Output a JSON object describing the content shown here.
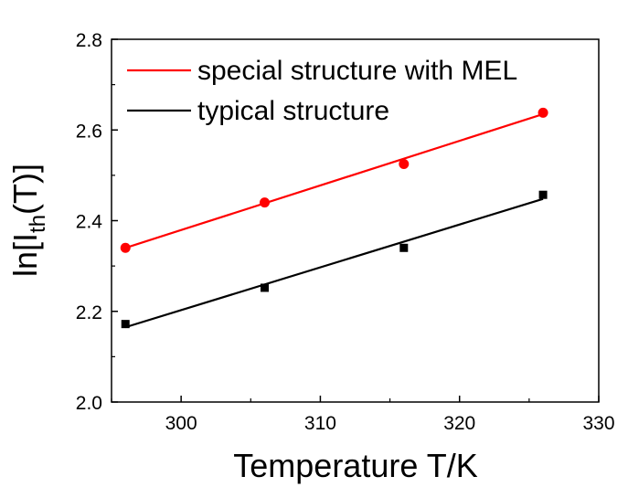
{
  "chart_data": {
    "type": "scatter",
    "xlabel": "Temperature T/K",
    "ylabel": {
      "prefix": "ln[I",
      "subscript": "th",
      "suffix": "(T)]"
    },
    "xlim": [
      295,
      330
    ],
    "ylim": [
      2.0,
      2.8
    ],
    "xticks": [
      300,
      310,
      320,
      330
    ],
    "yticks": [
      2.0,
      2.2,
      2.4,
      2.6,
      2.8
    ],
    "xtick_labels": [
      "300",
      "310",
      "320",
      "330"
    ],
    "ytick_labels": [
      "2.0",
      "2.2",
      "2.4",
      "2.6",
      "2.8"
    ],
    "grid": false,
    "legend_position": "top-left",
    "series": [
      {
        "name": "special structure with MEL",
        "color": "#ff0000",
        "marker": "circle",
        "x": [
          296,
          306,
          316,
          326
        ],
        "y": [
          2.34,
          2.44,
          2.525,
          2.638
        ],
        "fit": {
          "x": [
            296,
            326
          ],
          "y": [
            2.34,
            2.635
          ]
        }
      },
      {
        "name": "typical structure",
        "color": "#000000",
        "marker": "square",
        "x": [
          296,
          306,
          316,
          326
        ],
        "y": [
          2.172,
          2.252,
          2.34,
          2.457
        ],
        "fit": {
          "x": [
            296,
            326
          ],
          "y": [
            2.165,
            2.448
          ]
        }
      }
    ]
  }
}
